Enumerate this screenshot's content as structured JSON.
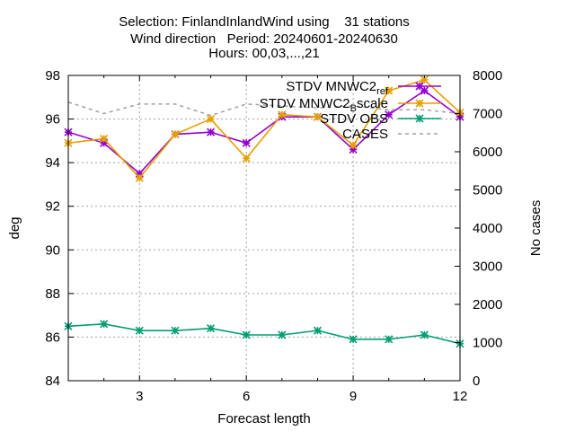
{
  "chart_data": {
    "type": "line",
    "title_lines": [
      "Selection: FinlandInlandWind using    31 stations",
      "Wind direction   Period: 20240601-20240630",
      "Hours: 00,03,...,21"
    ],
    "xlabel": "Forecast length",
    "ylabel": "deg",
    "y2label": "No cases",
    "xlim": [
      1,
      12
    ],
    "ylim": [
      84,
      98
    ],
    "y2lim": [
      0,
      8000
    ],
    "xticks": [
      3,
      6,
      9,
      12
    ],
    "yticks": [
      84,
      86,
      88,
      90,
      92,
      94,
      96,
      98
    ],
    "y2ticks": [
      0,
      1000,
      2000,
      3000,
      4000,
      5000,
      6000,
      7000,
      8000
    ],
    "grid": true,
    "legend_position": "top-right",
    "x": [
      1,
      2,
      3,
      4,
      5,
      6,
      7,
      8,
      9,
      10,
      11,
      12
    ],
    "series": [
      {
        "name": "STDV MNWC2_ref",
        "legend_parts": [
          [
            "STDV MNWC2",
            "normal"
          ],
          [
            "ref",
            "sub"
          ]
        ],
        "axis": "y",
        "color": "#9400d3",
        "marker": "star",
        "values": [
          95.4,
          94.9,
          93.5,
          95.3,
          95.4,
          94.9,
          96.1,
          96.1,
          94.6,
          96.2,
          97.3,
          96.1
        ]
      },
      {
        "name": "STDV MNWC2_Bscale",
        "legend_parts": [
          [
            "STDV MNWC2",
            "normal"
          ],
          [
            "B",
            "sub"
          ],
          [
            "scale",
            "normal"
          ]
        ],
        "axis": "y",
        "color": "#e69f00",
        "marker": "star",
        "values": [
          94.9,
          95.1,
          93.3,
          95.3,
          96.0,
          94.2,
          96.2,
          96.1,
          94.8,
          97.3,
          97.8,
          96.3
        ]
      },
      {
        "name": "STDV OBS",
        "legend_parts": [
          [
            "STDV OBS",
            "normal"
          ]
        ],
        "axis": "y",
        "color": "#009e73",
        "marker": "star",
        "values": [
          86.5,
          86.6,
          86.3,
          86.3,
          86.4,
          86.1,
          86.1,
          86.3,
          85.9,
          85.9,
          86.1,
          85.7
        ]
      },
      {
        "name": "CASES",
        "legend_parts": [
          [
            "CASES",
            "normal"
          ]
        ],
        "axis": "y2",
        "color": "#a0a0a0",
        "marker": "none",
        "dashed": true,
        "values": [
          7300,
          7000,
          7250,
          7250,
          6950,
          7250,
          7200,
          7150,
          7200,
          7100,
          7100,
          7000
        ]
      }
    ]
  }
}
